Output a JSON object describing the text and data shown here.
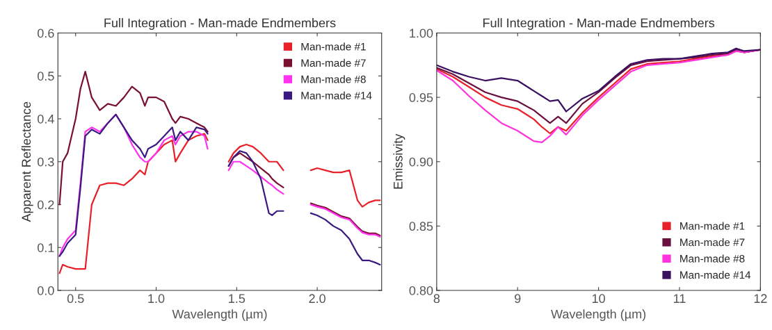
{
  "chart_data": [
    {
      "type": "line",
      "title": "Full Integration - Man-made Endmembers",
      "xlabel": "Wavelength (µm)",
      "ylabel": "Apparent Reflectance",
      "xlim": [
        0.39,
        2.4
      ],
      "xticks": [
        {
          "value": 0.5,
          "label": "0.5"
        },
        {
          "value": 1.0,
          "label": "1.0"
        },
        {
          "value": 1.5,
          "label": "1.5"
        },
        {
          "value": 2.0,
          "label": "2.0"
        }
      ],
      "ylim": [
        0,
        0.6
      ],
      "yticks": [
        {
          "value": 0,
          "label": "0.0"
        },
        0.1,
        0.2,
        0.3,
        0.4,
        0.5,
        0.6
      ],
      "grid": false,
      "legend": "top right",
      "x": [
        0.4,
        0.42,
        0.45,
        0.5,
        0.53,
        0.56,
        0.6,
        0.65,
        0.7,
        0.75,
        0.8,
        0.85,
        0.9,
        0.93,
        0.95,
        1.0,
        1.05,
        1.1,
        1.12,
        1.15,
        1.2,
        1.25,
        1.3,
        1.32,
        1.38,
        1.45,
        1.48,
        1.52,
        1.56,
        1.6,
        1.65,
        1.7,
        1.72,
        1.75,
        1.79,
        1.88,
        1.96,
        2.0,
        2.05,
        2.1,
        2.15,
        2.2,
        2.25,
        2.28,
        2.32,
        2.36,
        2.39
      ],
      "series": [
        {
          "name": "Man-made #1",
          "color": "#e8202a",
          "values": [
            0.04,
            0.06,
            0.055,
            0.05,
            0.05,
            0.05,
            0.2,
            0.245,
            0.25,
            0.25,
            0.245,
            0.26,
            0.28,
            0.27,
            0.3,
            0.32,
            0.34,
            0.35,
            0.3,
            0.32,
            0.35,
            0.36,
            0.365,
            0.35,
            null,
            0.3,
            0.32,
            0.335,
            0.34,
            0.335,
            0.32,
            0.3,
            0.3,
            0.3,
            0.28,
            null,
            0.28,
            0.285,
            0.28,
            0.275,
            0.275,
            0.28,
            0.21,
            0.195,
            0.205,
            0.21,
            0.21
          ]
        },
        {
          "name": "Man-made #7",
          "color": "#7a1030",
          "values": [
            0.2,
            0.3,
            0.32,
            0.4,
            0.47,
            0.51,
            0.45,
            0.42,
            0.435,
            0.43,
            0.45,
            0.475,
            0.46,
            0.43,
            0.45,
            0.45,
            0.44,
            0.4,
            0.39,
            0.405,
            0.4,
            0.39,
            0.38,
            0.37,
            null,
            0.29,
            0.31,
            0.32,
            0.31,
            0.3,
            0.285,
            0.27,
            0.26,
            0.25,
            0.24,
            null,
            0.203,
            0.198,
            0.193,
            0.183,
            0.173,
            0.168,
            0.148,
            0.138,
            0.133,
            0.133,
            0.128
          ]
        },
        {
          "name": "Man-made #8",
          "color": "#ff33ee",
          "values": [
            0.08,
            0.1,
            0.12,
            0.14,
            0.25,
            0.37,
            0.38,
            0.37,
            0.39,
            0.41,
            0.38,
            0.34,
            0.31,
            0.3,
            0.3,
            0.32,
            0.35,
            0.36,
            0.34,
            0.36,
            0.37,
            0.37,
            0.36,
            0.33,
            null,
            0.28,
            0.3,
            0.3,
            0.29,
            0.28,
            0.265,
            0.25,
            0.245,
            0.235,
            0.225,
            null,
            0.2,
            0.195,
            0.19,
            0.18,
            0.17,
            0.165,
            0.145,
            0.135,
            0.13,
            0.13,
            0.125
          ]
        },
        {
          "name": "Man-made #14",
          "color": "#3a1a80",
          "values": [
            0.08,
            0.09,
            0.11,
            0.13,
            0.24,
            0.36,
            0.375,
            0.365,
            0.39,
            0.41,
            0.38,
            0.35,
            0.33,
            0.31,
            0.33,
            0.34,
            0.36,
            0.38,
            0.35,
            0.37,
            0.35,
            0.38,
            0.375,
            0.365,
            null,
            0.29,
            0.31,
            0.325,
            0.32,
            0.3,
            0.26,
            0.18,
            0.175,
            0.185,
            0.185,
            null,
            0.18,
            0.175,
            0.165,
            0.15,
            0.14,
            0.12,
            0.085,
            0.07,
            0.07,
            0.065,
            0.06
          ]
        }
      ]
    },
    {
      "type": "line",
      "title": "Full Integration - Man-made Endmembers",
      "xlabel": "Wavelength (µm)",
      "ylabel": "Emissivity",
      "xlim": [
        8,
        12
      ],
      "xticks": [
        8,
        9,
        10,
        11,
        12
      ],
      "ylim": [
        0.8,
        1.0
      ],
      "yticks": [
        {
          "value": 0.8,
          "label": "0.80"
        },
        {
          "value": 0.85,
          "label": "0.85"
        },
        {
          "value": 0.9,
          "label": "0.90"
        },
        {
          "value": 0.95,
          "label": "0.95"
        },
        {
          "value": 1.0,
          "label": "1.00"
        }
      ],
      "grid": false,
      "legend": "bottom right",
      "x": [
        8,
        8.2,
        8.4,
        8.6,
        8.8,
        9.0,
        9.2,
        9.3,
        9.4,
        9.5,
        9.6,
        9.8,
        10.0,
        10.2,
        10.4,
        10.6,
        10.8,
        11.0,
        11.2,
        11.4,
        11.6,
        11.7,
        11.8,
        12.0
      ],
      "series": [
        {
          "name": "Man-made #1",
          "color": "#e8202a",
          "values": [
            0.972,
            0.966,
            0.958,
            0.95,
            0.944,
            0.941,
            0.933,
            0.927,
            0.922,
            0.927,
            0.924,
            0.938,
            0.95,
            0.961,
            0.972,
            0.976,
            0.977,
            0.978,
            0.98,
            0.982,
            0.983,
            0.986,
            0.985,
            0.987
          ]
        },
        {
          "name": "Man-made #7",
          "color": "#6a1040",
          "values": [
            0.973,
            0.968,
            0.961,
            0.954,
            0.95,
            0.947,
            0.94,
            0.935,
            0.93,
            0.935,
            0.93,
            0.945,
            0.954,
            0.965,
            0.975,
            0.978,
            0.979,
            0.98,
            0.981,
            0.983,
            0.984,
            0.987,
            0.985,
            0.987
          ]
        },
        {
          "name": "Man-made #8",
          "color": "#ff33dd",
          "values": [
            0.971,
            0.963,
            0.951,
            0.94,
            0.93,
            0.924,
            0.916,
            0.915,
            0.92,
            0.927,
            0.921,
            0.936,
            0.948,
            0.959,
            0.97,
            0.975,
            0.976,
            0.977,
            0.979,
            0.981,
            0.983,
            0.986,
            0.985,
            0.987
          ]
        },
        {
          "name": "Man-made #14",
          "color": "#3a1060",
          "values": [
            0.975,
            0.97,
            0.966,
            0.963,
            0.965,
            0.963,
            0.955,
            0.951,
            0.947,
            0.948,
            0.939,
            0.949,
            0.955,
            0.966,
            0.976,
            0.979,
            0.98,
            0.98,
            0.982,
            0.984,
            0.985,
            0.988,
            0.986,
            0.987
          ]
        }
      ]
    }
  ]
}
